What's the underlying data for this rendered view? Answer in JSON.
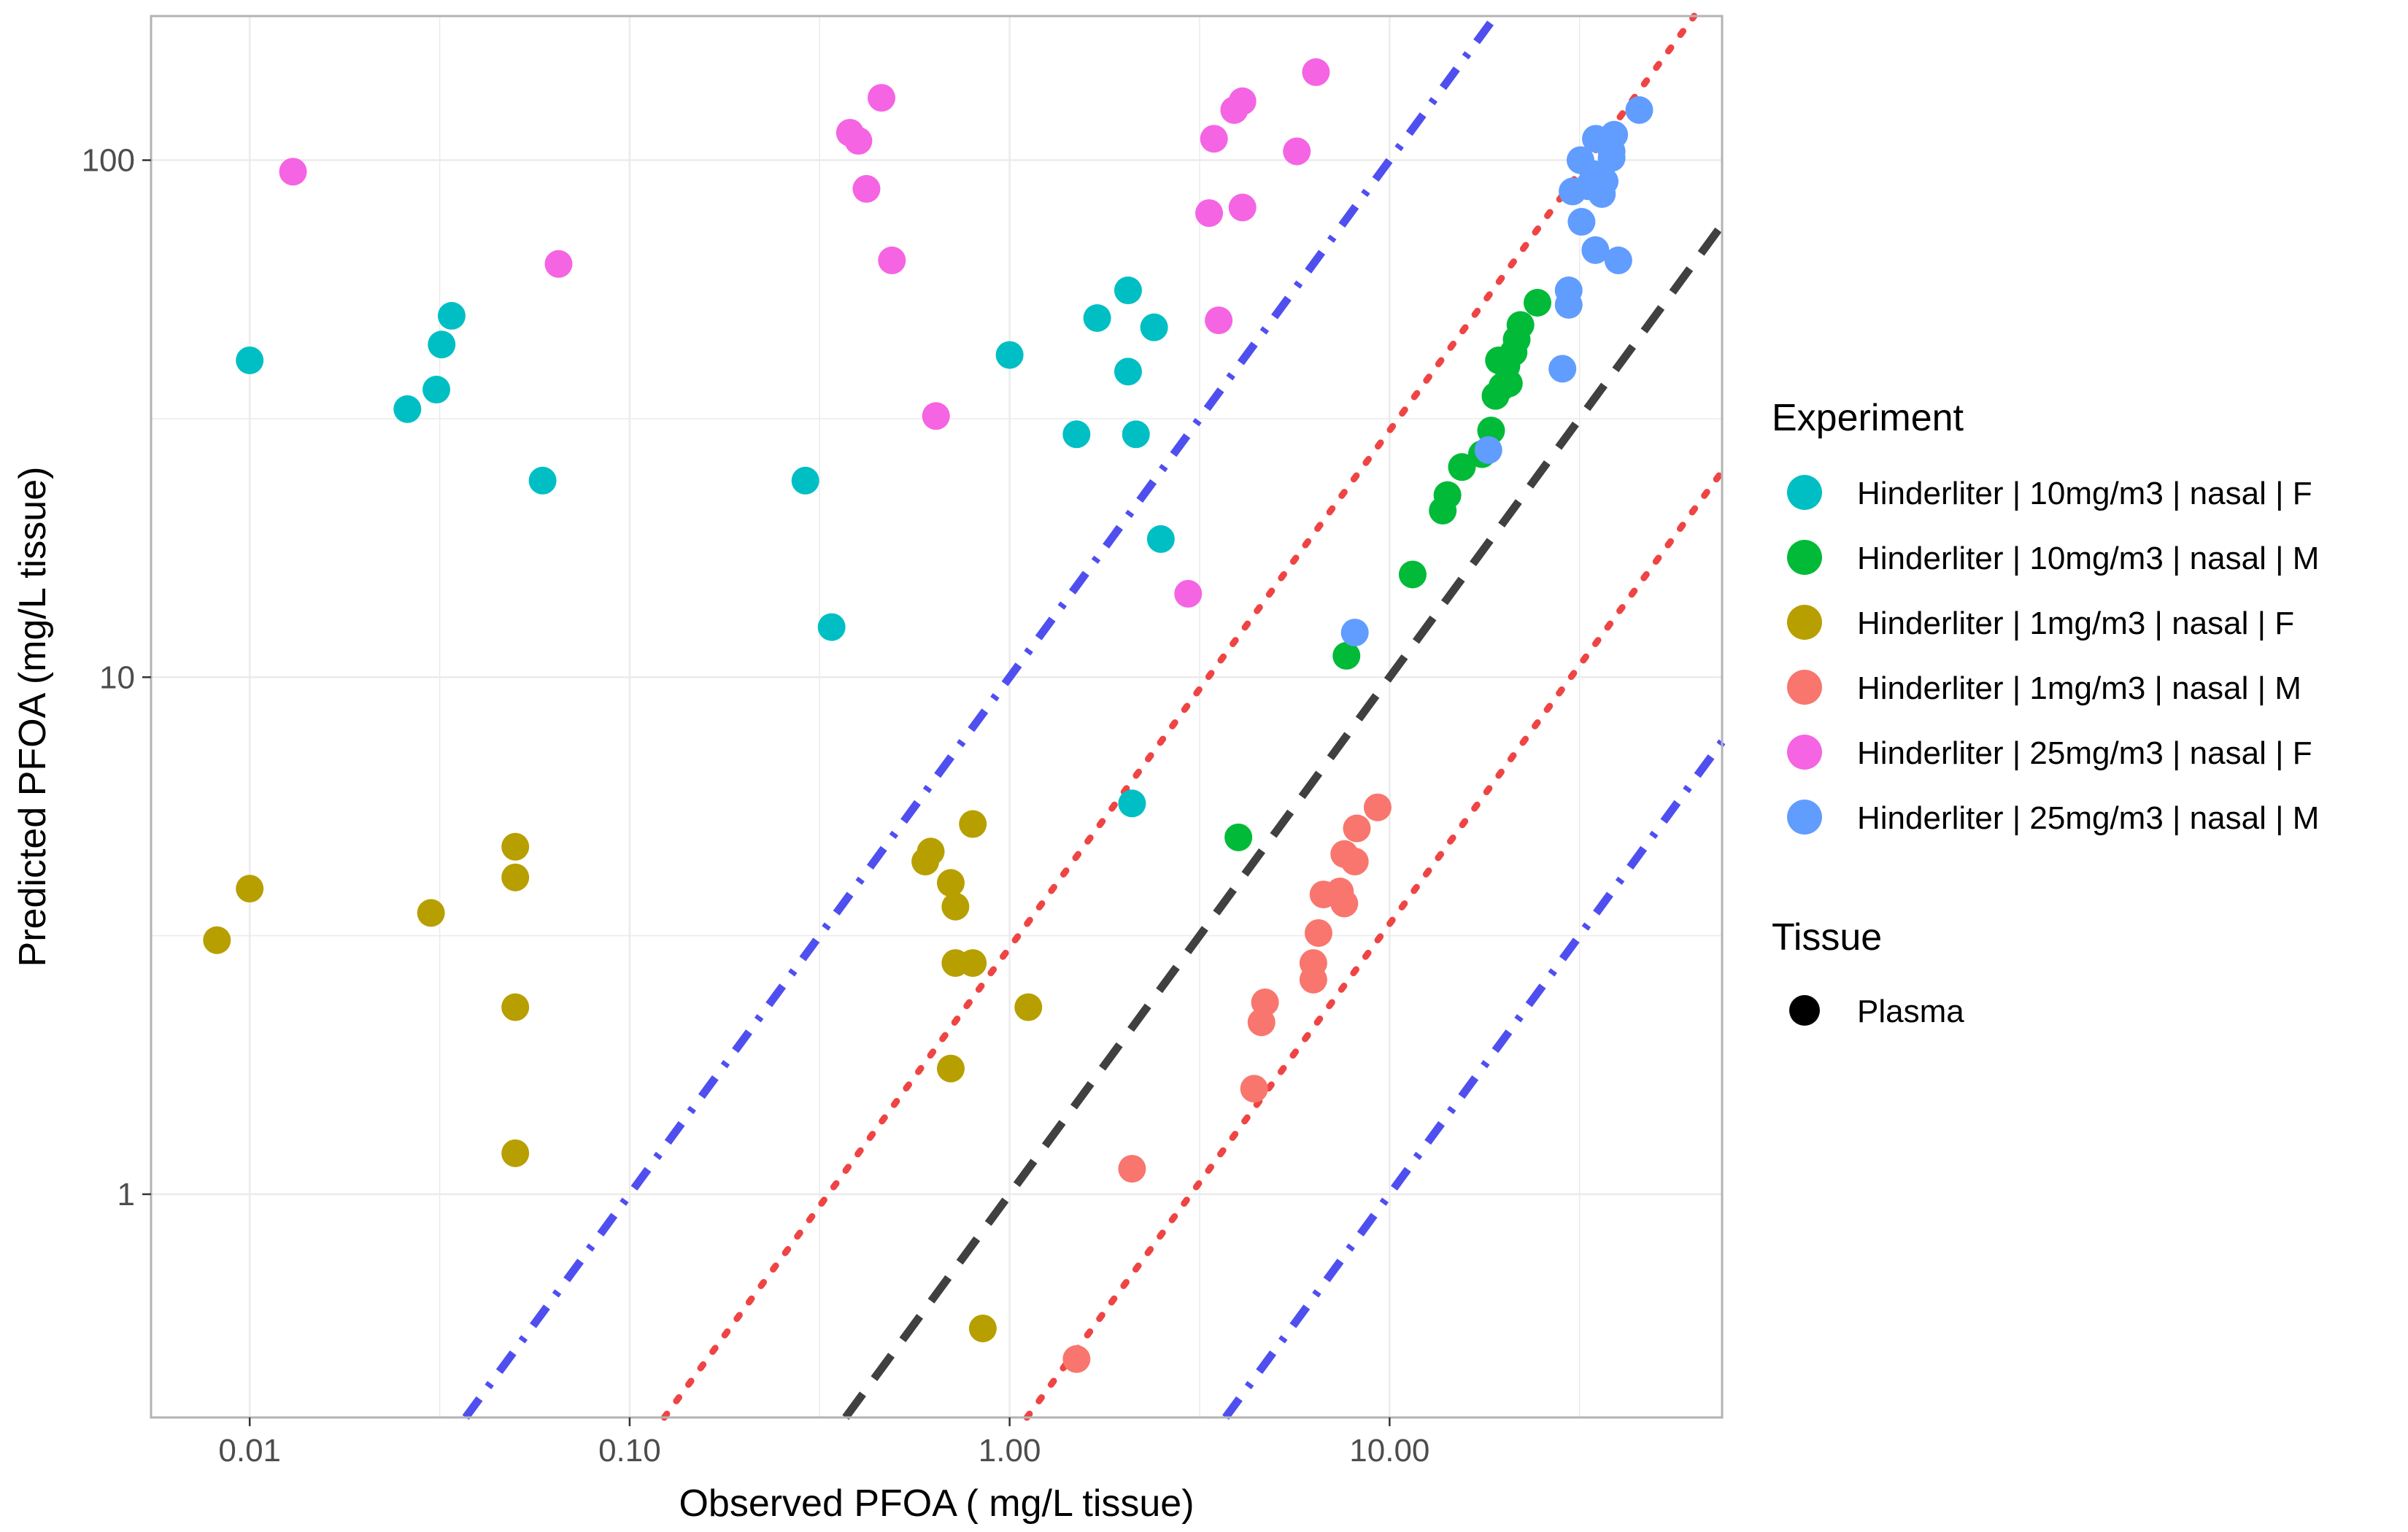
{
  "chart_data": {
    "type": "scatter",
    "xlabel": "Observed PFOA ( mg/L tissue)",
    "ylabel": "Predicted PFOA (mg/L tissue)",
    "x_scale": "log10",
    "y_scale": "log10",
    "xlim": [
      0.0055,
      75
    ],
    "ylim": [
      0.37,
      190
    ],
    "x_ticks": [
      {
        "value": 0.01,
        "label": "0.01"
      },
      {
        "value": 0.1,
        "label": "0.10"
      },
      {
        "value": 1,
        "label": "1.00"
      },
      {
        "value": 10,
        "label": "10.00"
      }
    ],
    "y_ticks": [
      {
        "value": 1,
        "label": "1"
      },
      {
        "value": 10,
        "label": "10"
      },
      {
        "value": 100,
        "label": "100"
      }
    ],
    "grid": true,
    "reference_lines": [
      {
        "fold": 1,
        "style": "dashed",
        "color": "#404040"
      },
      {
        "fold": 3,
        "style": "dotted",
        "color": "#ef4444"
      },
      {
        "fold": 0.3333,
        "style": "dotted",
        "color": "#ef4444"
      },
      {
        "fold": 10,
        "style": "dashdot",
        "color": "#4f4ff0"
      },
      {
        "fold": 0.1,
        "style": "dashdot",
        "color": "#4f4ff0"
      }
    ],
    "legend": {
      "position": "right",
      "experiment_title": "Experiment",
      "tissue_title": "Tissue",
      "tissue_entries": [
        {
          "label": "Plasma",
          "shape": "circle",
          "color": "#000000"
        }
      ]
    },
    "series": [
      {
        "name": "Hinderliter | 10mg/m3 | nasal | F",
        "color": "#00bfc4",
        "points": [
          [
            0.01,
            41
          ],
          [
            0.026,
            33
          ],
          [
            0.031,
            36
          ],
          [
            0.032,
            44
          ],
          [
            0.034,
            50
          ],
          [
            0.059,
            24
          ],
          [
            0.29,
            24
          ],
          [
            0.34,
            12.5
          ],
          [
            1.0,
            42
          ],
          [
            1.5,
            29.5
          ],
          [
            1.7,
            49.5
          ],
          [
            2.05,
            56
          ],
          [
            2.05,
            39
          ],
          [
            2.15,
            29.5
          ],
          [
            2.4,
            47.5
          ],
          [
            2.5,
            18.5
          ],
          [
            2.1,
            5.7
          ]
        ]
      },
      {
        "name": "Hinderliter | 10mg/m3 | nasal | M",
        "color": "#00ba38",
        "points": [
          [
            4.0,
            4.9
          ],
          [
            7.7,
            11
          ],
          [
            11.5,
            15.8
          ],
          [
            13.8,
            21
          ],
          [
            14.2,
            22.5
          ],
          [
            15.5,
            25.5
          ],
          [
            17.5,
            27
          ],
          [
            18.5,
            30
          ],
          [
            19.0,
            35
          ],
          [
            19.8,
            36.5
          ],
          [
            20.6,
            37
          ],
          [
            21.2,
            42.5
          ],
          [
            21.6,
            45
          ],
          [
            22.1,
            48
          ],
          [
            19.4,
            41
          ],
          [
            20.3,
            40
          ],
          [
            24.5,
            53
          ]
        ]
      },
      {
        "name": "Hinderliter | 1mg/m3 | nasal | F",
        "color": "#b79f00",
        "points": [
          [
            0.0082,
            3.1
          ],
          [
            0.01,
            3.9
          ],
          [
            0.03,
            3.5
          ],
          [
            0.05,
            4.7
          ],
          [
            0.05,
            4.1
          ],
          [
            0.05,
            2.3
          ],
          [
            0.05,
            1.2
          ],
          [
            0.6,
            4.4
          ],
          [
            0.62,
            4.6
          ],
          [
            0.7,
            4.0
          ],
          [
            0.72,
            3.6
          ],
          [
            0.72,
            2.8
          ],
          [
            0.8,
            2.8
          ],
          [
            0.8,
            5.2
          ],
          [
            0.7,
            1.75
          ],
          [
            1.12,
            2.3
          ],
          [
            0.85,
            0.55
          ]
        ]
      },
      {
        "name": "Hinderliter | 1mg/m3 | nasal | M",
        "color": "#f8766d",
        "points": [
          [
            1.5,
            0.48
          ],
          [
            2.1,
            1.12
          ],
          [
            4.4,
            1.6
          ],
          [
            4.6,
            2.15
          ],
          [
            4.7,
            2.35
          ],
          [
            6.3,
            2.6
          ],
          [
            6.3,
            2.8
          ],
          [
            6.5,
            3.2
          ],
          [
            6.7,
            3.8
          ],
          [
            7.4,
            3.85
          ],
          [
            7.6,
            3.65
          ],
          [
            7.6,
            4.55
          ],
          [
            8.1,
            4.4
          ],
          [
            8.2,
            5.1
          ],
          [
            9.3,
            5.6
          ]
        ]
      },
      {
        "name": "Hinderliter | 25mg/m3 | nasal | F",
        "color": "#f564e3",
        "points": [
          [
            0.013,
            95
          ],
          [
            0.065,
            63
          ],
          [
            0.38,
            113
          ],
          [
            0.4,
            109
          ],
          [
            0.42,
            88
          ],
          [
            0.46,
            132
          ],
          [
            0.49,
            64
          ],
          [
            0.64,
            32
          ],
          [
            2.95,
            14.5
          ],
          [
            3.35,
            79
          ],
          [
            3.45,
            110
          ],
          [
            3.55,
            49
          ],
          [
            3.9,
            125
          ],
          [
            4.1,
            81
          ],
          [
            4.1,
            130
          ],
          [
            5.7,
            104
          ],
          [
            6.4,
            148
          ]
        ]
      },
      {
        "name": "Hinderliter | 25mg/m3 | nasal | M",
        "color": "#619cff",
        "points": [
          [
            8.1,
            12.2
          ],
          [
            18.2,
            27.5
          ],
          [
            28.5,
            39.5
          ],
          [
            29.6,
            52.5
          ],
          [
            29.6,
            56
          ],
          [
            30.3,
            87
          ],
          [
            31.8,
            100
          ],
          [
            32.0,
            76
          ],
          [
            33.4,
            89
          ],
          [
            34.4,
            94
          ],
          [
            34.8,
            67
          ],
          [
            34.9,
            110
          ],
          [
            36.2,
            86
          ],
          [
            36.8,
            91
          ],
          [
            38.4,
            101
          ],
          [
            38.4,
            104
          ],
          [
            39.0,
            112
          ],
          [
            40.0,
            64
          ],
          [
            45.4,
            125
          ]
        ]
      }
    ]
  }
}
